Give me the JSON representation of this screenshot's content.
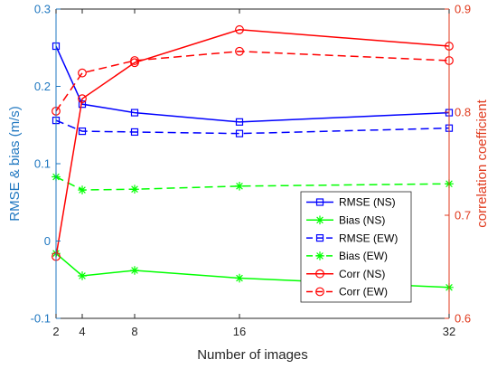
{
  "chart_data": {
    "type": "line",
    "xlabel": "Number of images",
    "ylabel_left": "RMSE & bias (m/s)",
    "ylabel_right": "correlation coefficient",
    "x": [
      2,
      4,
      8,
      16,
      32
    ],
    "x_ticks": [
      "2",
      "4",
      "8",
      "16",
      "32"
    ],
    "ylim_left": [
      -0.1,
      0.3
    ],
    "yticks_left": [
      "-0.1",
      "0",
      "0.1",
      "0.2",
      "0.3"
    ],
    "ylim_right": [
      0.6,
      0.9
    ],
    "yticks_right": [
      "0.6",
      "0.7",
      "0.8",
      "0.9"
    ],
    "left_axis_color": "#1f77c0",
    "right_axis_color": "#e03a1e",
    "grid": false,
    "legend_position": "lower-right",
    "series": [
      {
        "name": "RMSE (NS)",
        "axis": "left",
        "color": "#0000ff",
        "dash": "solid",
        "marker": "square",
        "values": [
          0.252,
          0.177,
          0.166,
          0.154,
          0.166
        ]
      },
      {
        "name": "Bias (NS)",
        "axis": "left",
        "color": "#00ff00",
        "dash": "solid",
        "marker": "star",
        "values": [
          -0.016,
          -0.045,
          -0.038,
          -0.048,
          -0.06
        ]
      },
      {
        "name": "RMSE (EW)",
        "axis": "left",
        "color": "#0000ff",
        "dash": "dashed",
        "marker": "square",
        "values": [
          0.156,
          0.142,
          0.141,
          0.139,
          0.146
        ]
      },
      {
        "name": "Bias (EW)",
        "axis": "left",
        "color": "#00ff00",
        "dash": "dashed",
        "marker": "star",
        "values": [
          0.083,
          0.066,
          0.067,
          0.071,
          0.074
        ]
      },
      {
        "name": "Corr (NS)",
        "axis": "right",
        "color": "#ff0000",
        "dash": "solid",
        "marker": "circle",
        "values": [
          0.66,
          0.813,
          0.848,
          0.88,
          0.864
        ]
      },
      {
        "name": "Corr (EW)",
        "axis": "right",
        "color": "#ff0000",
        "dash": "dashed",
        "marker": "circle",
        "values": [
          0.801,
          0.838,
          0.85,
          0.859,
          0.85
        ]
      }
    ]
  }
}
